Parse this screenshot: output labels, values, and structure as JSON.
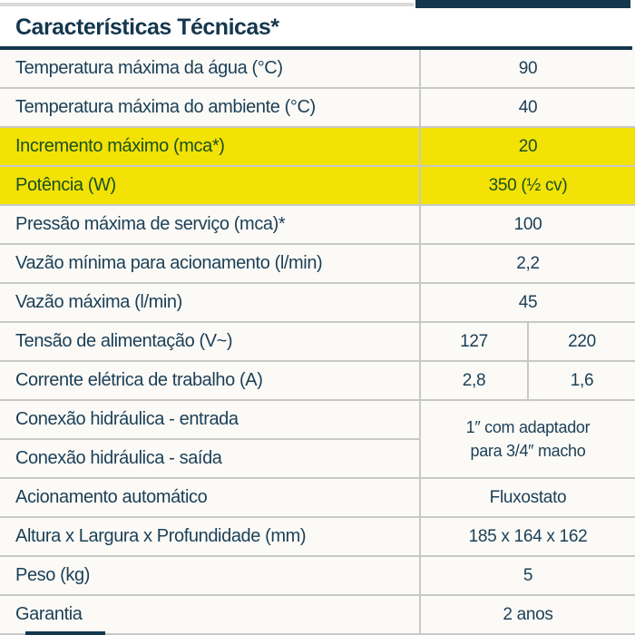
{
  "page": {
    "title": "Características Técnicas*"
  },
  "colors": {
    "navy": "#14374e",
    "text_navy": "#1b3f57",
    "gray": "#c8c8c8",
    "yellow": "#f2e205",
    "green": "#1b4f1e",
    "bg": "#fbfaf6"
  },
  "table": {
    "rows": [
      {
        "label": "Temperatura máxima da água (°C)",
        "value": "90"
      },
      {
        "label": "Temperatura máxima do ambiente (°C)",
        "value": "40"
      },
      {
        "label": "Incremento máximo (mca*)",
        "value": "20",
        "highlight": true
      },
      {
        "label": "Potência (W)",
        "value": "350 (½ cv)",
        "highlight": true
      },
      {
        "label": "Pressão máxima de serviço (mca)*",
        "value": "100"
      },
      {
        "label": "Vazão mínima para acionamento (l/min)",
        "value": "2,2"
      },
      {
        "label": "Vazão máxima (l/min)",
        "value": "45"
      },
      {
        "label": "Tensão de alimentação (V~)",
        "values": [
          "127",
          "220"
        ]
      },
      {
        "label": "Corrente elétrica de trabalho (A)",
        "values": [
          "2,8",
          "1,6"
        ]
      },
      {
        "label": "Conexão hidráulica - entrada"
      },
      {
        "label": "Conexão hidráulica - saída"
      },
      {
        "label": "Acionamento automático",
        "value": "Fluxostato"
      },
      {
        "label": "Altura x Largura x Profundidade (mm)",
        "value": "185 x 164 x 162"
      },
      {
        "label": "Peso (kg)",
        "value": "5"
      },
      {
        "label": "Garantia",
        "value": "2 anos"
      }
    ],
    "merged_value": {
      "line1": "1″ com adaptador",
      "line2": "para 3/4″ macho"
    }
  }
}
